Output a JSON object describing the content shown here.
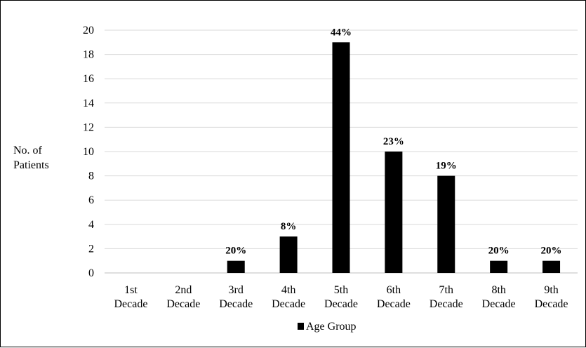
{
  "chart_data": {
    "type": "bar",
    "categories": [
      [
        "1st",
        "Decade"
      ],
      [
        "2nd",
        "Decade"
      ],
      [
        "3rd",
        "Decade"
      ],
      [
        "4th",
        "Decade"
      ],
      [
        "5th",
        "Decade"
      ],
      [
        "6th",
        "Decade"
      ],
      [
        "7th",
        "Decade"
      ],
      [
        "8th",
        "Decade"
      ],
      [
        "9th",
        "Decade"
      ]
    ],
    "series": [
      {
        "name": "Age Group",
        "values": [
          0,
          0,
          1,
          3,
          19,
          10,
          8,
          1,
          1
        ],
        "data_labels": [
          "",
          "",
          "20%",
          "8%",
          "44%",
          "23%",
          "19%",
          "20%",
          "20%"
        ],
        "color": "#000000"
      }
    ],
    "ylabel": [
      "No. of",
      "Patients"
    ],
    "ylim": [
      0,
      20
    ],
    "yticks": [
      0,
      2,
      4,
      6,
      8,
      10,
      12,
      14,
      16,
      18,
      20
    ],
    "grid": true,
    "legend": "bottom-center"
  }
}
